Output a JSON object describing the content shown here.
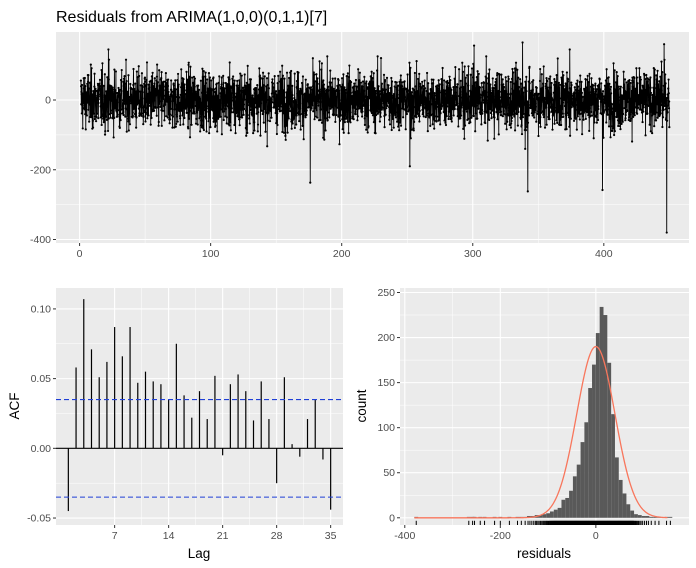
{
  "title": "Residuals from ARIMA(1,0,0)(0,1,1)[7]",
  "colors": {
    "panel_bg": "#ebebeb",
    "grid_major": "#ffffff",
    "series": "#000000",
    "ci_line": "#1f3fd6",
    "histogram": "#595959",
    "density": "#f8765c",
    "tick_text": "#4d4d4d"
  },
  "chart_data": [
    {
      "id": "residuals",
      "type": "line",
      "title": "Residuals from ARIMA(1,0,0)(0,1,1)[7]",
      "xlabel": "",
      "ylabel": "",
      "xlim": [
        -18,
        465
      ],
      "ylim": [
        -410,
        195
      ],
      "x_ticks": [
        0,
        100,
        200,
        300,
        400
      ],
      "y_ticks": [
        0,
        -200,
        -400
      ],
      "x_tick_labels": [
        "0",
        "100",
        "200",
        "300",
        "400"
      ],
      "y_tick_labels": [
        "0",
        "-200",
        "-400"
      ],
      "x_range": [
        1,
        450
      ],
      "points_per_unit": 7,
      "series_noise_sd": 42,
      "spikes": [
        {
          "x": 22,
          "y": 145
        },
        {
          "x": 176,
          "y": 130
        },
        {
          "x": 176,
          "y": -237
        },
        {
          "x": 301,
          "y": 156
        },
        {
          "x": 338,
          "y": 165
        },
        {
          "x": 340,
          "y": -140
        },
        {
          "x": 342,
          "y": -262
        },
        {
          "x": 399,
          "y": -258
        },
        {
          "x": 374,
          "y": 145
        },
        {
          "x": 446,
          "y": 160
        },
        {
          "x": 448,
          "y": -380
        },
        {
          "x": 444,
          "y": 110
        },
        {
          "x": 230,
          "y": 120
        },
        {
          "x": 119,
          "y": -95
        },
        {
          "x": 252,
          "y": -190
        }
      ],
      "grid": true,
      "legend": "none"
    },
    {
      "id": "acf",
      "type": "bar",
      "title": "",
      "xlabel": "Lag",
      "ylabel": "ACF",
      "xlim": [
        -0.6,
        36.6
      ],
      "ylim": [
        -0.055,
        0.115
      ],
      "x_ticks": [
        7,
        14,
        21,
        28,
        35
      ],
      "y_ticks": [
        -0.05,
        0.0,
        0.05,
        0.1
      ],
      "x_tick_labels": [
        "7",
        "14",
        "21",
        "28",
        "35"
      ],
      "y_tick_labels": [
        "-0.05",
        "0.00",
        "0.05",
        "0.10"
      ],
      "lags": [
        1,
        2,
        3,
        4,
        5,
        6,
        7,
        8,
        9,
        10,
        11,
        12,
        13,
        14,
        15,
        16,
        17,
        18,
        19,
        20,
        21,
        22,
        23,
        24,
        25,
        26,
        27,
        28,
        29,
        30,
        31,
        32,
        33,
        34,
        35
      ],
      "values": [
        -0.045,
        0.058,
        0.107,
        0.071,
        0.051,
        0.062,
        0.087,
        0.066,
        0.087,
        0.047,
        0.055,
        0.048,
        0.046,
        0.035,
        0.075,
        0.038,
        0.022,
        0.041,
        0.021,
        0.052,
        -0.005,
        0.046,
        0.053,
        0.041,
        0.02,
        0.048,
        0.021,
        -0.025,
        0.051,
        0.003,
        -0.006,
        0.021,
        0.035,
        -0.008,
        -0.044
      ],
      "ci": 0.035,
      "grid": true,
      "legend": "none"
    },
    {
      "id": "histogram",
      "type": "bar",
      "title": "",
      "xlabel": "residuals",
      "ylabel": "count",
      "xlim": [
        -410,
        195
      ],
      "ylim": [
        -8,
        255
      ],
      "x_ticks": [
        -400,
        -200,
        0
      ],
      "y_ticks": [
        0,
        50,
        100,
        150,
        200,
        250
      ],
      "x_tick_labels": [
        "-400",
        "-200",
        "0"
      ],
      "y_tick_labels": [
        "0",
        "50",
        "100",
        "150",
        "200",
        "250"
      ],
      "bin_starts": [
        -380,
        -270,
        -262,
        -258,
        -246,
        -237,
        -216,
        -204,
        -185,
        -168,
        -160,
        -152,
        -144,
        -136,
        -128,
        -120,
        -112,
        -104,
        -96,
        -88,
        -80,
        -72,
        -64,
        -56,
        -48,
        -40,
        -32,
        -24,
        -16,
        -8,
        0,
        8,
        16,
        24,
        32,
        40,
        48,
        56,
        64,
        72,
        80,
        88,
        96,
        104,
        112,
        120,
        128,
        136,
        144,
        152
      ],
      "bin_width": 8,
      "counts": [
        1,
        1,
        1,
        1,
        1,
        1,
        1,
        1,
        1,
        1,
        1,
        1,
        2,
        2,
        3,
        3,
        4,
        5,
        7,
        9,
        11,
        20,
        22,
        30,
        46,
        59,
        84,
        106,
        144,
        170,
        205,
        234,
        225,
        172,
        115,
        67,
        42,
        27,
        15,
        8,
        4,
        3,
        2,
        2,
        1,
        1,
        1,
        0,
        1,
        1
      ],
      "density": {
        "mean": 0,
        "sd": 40,
        "peak": 190
      },
      "rug": true,
      "grid": true,
      "legend": "none"
    }
  ]
}
